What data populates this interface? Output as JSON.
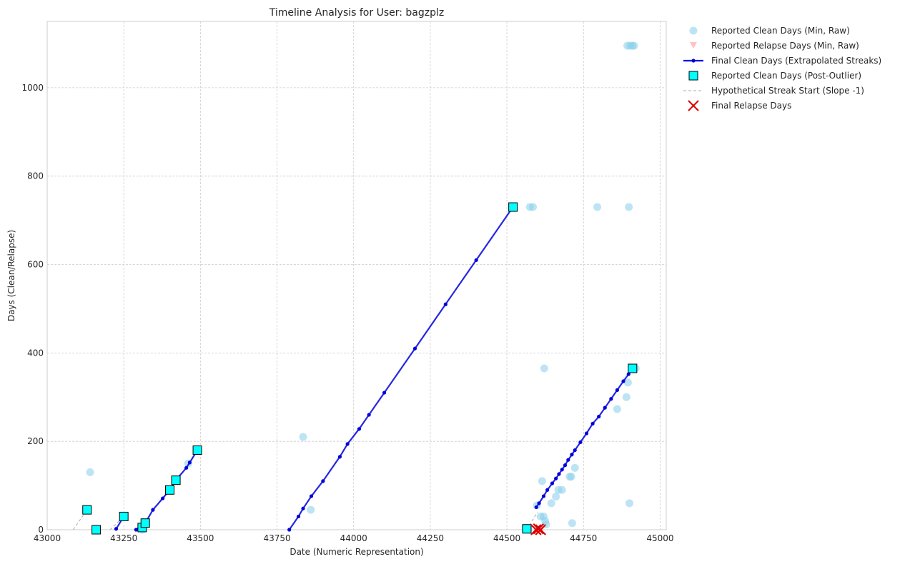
{
  "chart_data": {
    "type": "scatter",
    "title": "Timeline Analysis for User: bagzplz",
    "xlabel": "Date (Numeric Representation)",
    "ylabel": "Days (Clean/Relapse)",
    "xlim": [
      43000,
      45020
    ],
    "ylim": [
      0,
      1150
    ],
    "xticks": [
      43000,
      43250,
      43500,
      43750,
      44000,
      44250,
      44500,
      44750,
      45000
    ],
    "yticks": [
      0,
      200,
      400,
      600,
      800,
      1000
    ],
    "grid": true,
    "legend_position": "outside top-right",
    "series": [
      {
        "name": "Reported Clean Days (Min, Raw)",
        "kind": "scatter",
        "marker": "circle",
        "color": "#87ceeb",
        "points": [
          [
            43140,
            130
          ],
          [
            43160,
            0
          ],
          [
            43250,
            30
          ],
          [
            43310,
            0
          ],
          [
            43320,
            15
          ],
          [
            43400,
            90
          ],
          [
            43420,
            112
          ],
          [
            43460,
            150
          ],
          [
            43490,
            180
          ],
          [
            43835,
            210
          ],
          [
            43860,
            45
          ],
          [
            44575,
            730
          ],
          [
            44585,
            730
          ],
          [
            44795,
            730
          ],
          [
            44898,
            730
          ],
          [
            44893,
            1095
          ],
          [
            44902,
            1095
          ],
          [
            44910,
            1095
          ],
          [
            44915,
            1095
          ],
          [
            44570,
            0
          ],
          [
            44598,
            55
          ],
          [
            44610,
            30
          ],
          [
            44615,
            110
          ],
          [
            44620,
            30
          ],
          [
            44625,
            20
          ],
          [
            44622,
            365
          ],
          [
            44628,
            12
          ],
          [
            44645,
            60
          ],
          [
            44660,
            75
          ],
          [
            44668,
            90
          ],
          [
            44680,
            90
          ],
          [
            44705,
            120
          ],
          [
            44710,
            120
          ],
          [
            44713,
            15
          ],
          [
            44722,
            140
          ],
          [
            44860,
            273
          ],
          [
            44890,
            300
          ],
          [
            44895,
            333
          ],
          [
            44900,
            60
          ],
          [
            44912,
            365
          ],
          [
            44920,
            365
          ]
        ]
      },
      {
        "name": "Reported Relapse Days (Min, Raw)",
        "kind": "scatter",
        "marker": "triangle-down",
        "color": "#ff9999",
        "points": [
          [
            44598,
            0
          ],
          [
            44612,
            0
          ]
        ]
      },
      {
        "name": "Final Clean Days (Extrapolated Streaks)",
        "kind": "line",
        "marker": "dot",
        "color": "#0000dd",
        "segments": [
          [
            [
              43225,
              2
            ],
            [
              43250,
              30
            ]
          ],
          [
            [
              43290,
              0
            ],
            [
              43312,
              12
            ],
            [
              43320,
              15
            ],
            [
              43345,
              45
            ],
            [
              43377,
              71
            ],
            [
              43400,
              90
            ],
            [
              43420,
              112
            ],
            [
              43454,
              140
            ],
            [
              43465,
              152
            ],
            [
              43490,
              180
            ]
          ],
          [
            [
              43790,
              0
            ],
            [
              43820,
              30
            ],
            [
              43835,
              48
            ],
            [
              43862,
              76
            ],
            [
              43900,
              110
            ],
            [
              43955,
              165
            ],
            [
              43980,
              194
            ],
            [
              44018,
              228
            ],
            [
              44050,
              260
            ],
            [
              44100,
              310
            ],
            [
              44200,
              410
            ],
            [
              44300,
              510
            ],
            [
              44400,
              610
            ],
            [
              44520,
              730
            ]
          ],
          [
            [
              44596,
              51
            ],
            [
              44605,
              60
            ],
            [
              44620,
              76
            ],
            [
              44632,
              90
            ],
            [
              44648,
              105
            ],
            [
              44660,
              116
            ],
            [
              44670,
              126
            ],
            [
              44680,
              136
            ],
            [
              44690,
              146
            ],
            [
              44700,
              158
            ],
            [
              44712,
              170
            ],
            [
              44722,
              180
            ],
            [
              44740,
              198
            ],
            [
              44760,
              218
            ],
            [
              44780,
              240
            ],
            [
              44800,
              256
            ],
            [
              44820,
              276
            ],
            [
              44840,
              296
            ],
            [
              44860,
              316
            ],
            [
              44880,
              336
            ],
            [
              44897,
              352
            ],
            [
              44910,
              365
            ]
          ]
        ]
      },
      {
        "name": "Reported Clean Days (Post-Outlier)",
        "kind": "scatter",
        "marker": "square",
        "color": "#00ffff",
        "points": [
          [
            43130,
            45
          ],
          [
            43160,
            0
          ],
          [
            43250,
            30
          ],
          [
            43310,
            5
          ],
          [
            43320,
            15
          ],
          [
            43400,
            90
          ],
          [
            43420,
            112
          ],
          [
            43490,
            180
          ],
          [
            44520,
            730
          ],
          [
            44565,
            2
          ],
          [
            44910,
            365
          ]
        ]
      },
      {
        "name": "Hypothetical Streak Start (Slope -1)",
        "kind": "dashed-line",
        "color": "#aaaaaa",
        "segments": [
          [
            [
              43085,
              0
            ],
            [
              43130,
              45
            ]
          ],
          [
            [
              43205,
              0
            ],
            [
              43250,
              30
            ]
          ],
          [
            [
              44565,
              0
            ],
            [
              44600,
              40
            ]
          ]
        ]
      },
      {
        "name": "Final Relapse Days",
        "kind": "scatter",
        "marker": "x",
        "color": "#dd0000",
        "points": [
          [
            44595,
            0
          ],
          [
            44603,
            2
          ],
          [
            44610,
            0
          ]
        ]
      }
    ]
  }
}
